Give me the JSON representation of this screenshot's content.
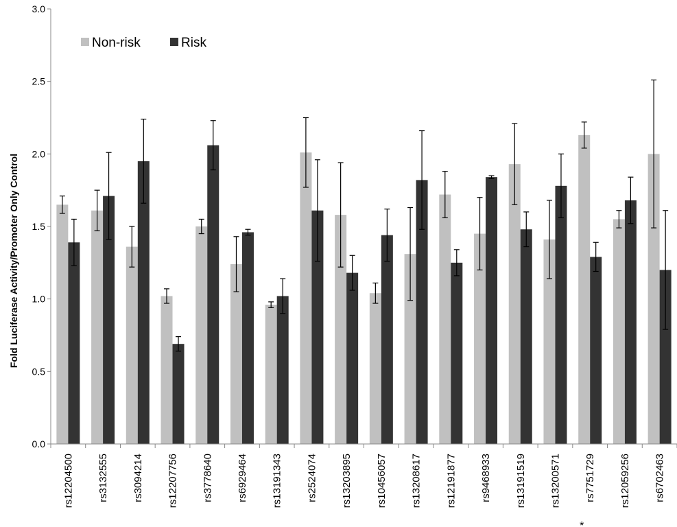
{
  "chart_data": {
    "type": "bar",
    "ylabel": "Fold Luciferase Activity/Promoter Only Control",
    "ylim": [
      0,
      3.0
    ],
    "yticks": [
      "0.0",
      "0.5",
      "1.0",
      "1.5",
      "2.0",
      "2.5",
      "3.0"
    ],
    "categories": [
      "rs12204500",
      "rs3132555",
      "rs3094214",
      "rs12207756",
      "rs3778640",
      "rs6929464",
      "rs13191343",
      "rs2524074",
      "rs13203895",
      "rs10456057",
      "rs13208617",
      "rs12191877",
      "rs9468933",
      "rs13191519",
      "rs13200571",
      "rs7751729",
      "rs12059256",
      "rs6702463"
    ],
    "annotation": "*",
    "annotation_category": "rs7751729",
    "legend_position": "top-left",
    "grid": false,
    "series": [
      {
        "name": "Non-risk",
        "color": "#c0c0c0",
        "values": [
          1.65,
          1.61,
          1.36,
          1.02,
          1.5,
          1.24,
          0.96,
          2.01,
          1.58,
          1.04,
          1.31,
          1.72,
          1.45,
          1.93,
          1.41,
          2.13,
          1.55,
          2.0
        ],
        "errors": [
          0.06,
          0.14,
          0.14,
          0.05,
          0.05,
          0.19,
          0.02,
          0.24,
          0.36,
          0.07,
          0.32,
          0.16,
          0.25,
          0.28,
          0.27,
          0.09,
          0.06,
          0.51
        ]
      },
      {
        "name": "Risk",
        "color": "#333333",
        "values": [
          1.39,
          1.71,
          1.95,
          0.69,
          2.06,
          1.46,
          1.02,
          1.61,
          1.18,
          1.44,
          1.82,
          1.25,
          1.84,
          1.48,
          1.78,
          1.29,
          1.68,
          1.2
        ],
        "errors": [
          0.16,
          0.3,
          0.29,
          0.05,
          0.17,
          0.02,
          0.12,
          0.35,
          0.12,
          0.18,
          0.34,
          0.09,
          0.01,
          0.12,
          0.22,
          0.1,
          0.16,
          0.41
        ]
      }
    ]
  }
}
